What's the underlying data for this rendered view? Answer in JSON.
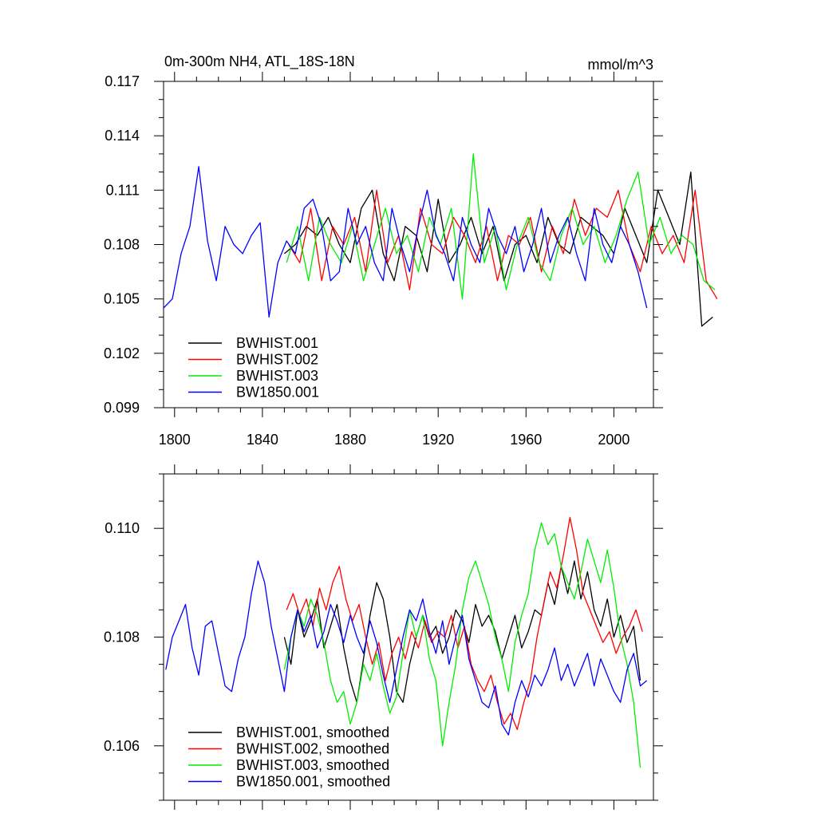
{
  "chart_data": [
    {
      "type": "line",
      "title": "0m-300m NH4, ATL_18S-18N",
      "units": "mmol/m^3",
      "xlabel": "",
      "ylabel": "",
      "xlim": [
        1795,
        2018
      ],
      "ylim": [
        0.099,
        0.117
      ],
      "x_ticks": [
        1800,
        1840,
        1880,
        1920,
        1960,
        2000
      ],
      "y_ticks": [
        0.099,
        0.102,
        0.105,
        0.108,
        0.111,
        0.114,
        0.117
      ],
      "y_tick_labels": [
        "0.099",
        "0.102",
        "0.105",
        "0.108",
        "0.111",
        "0.114",
        "0.117"
      ],
      "legend_position": "bottom-left",
      "series": [
        {
          "name": "BWHIST.001",
          "color": "#000000",
          "x_start": 1850,
          "x_step": 5,
          "values": [
            0.1075,
            0.108,
            0.109,
            0.1085,
            0.1095,
            0.108,
            0.107,
            0.11,
            0.111,
            0.1075,
            0.106,
            0.109,
            0.1085,
            0.1065,
            0.1105,
            0.107,
            0.108,
            0.1095,
            0.1075,
            0.109,
            0.106,
            0.108,
            0.1085,
            0.107,
            0.1095,
            0.108,
            0.1075,
            0.1095,
            0.109,
            0.1085,
            0.1075,
            0.11,
            0.1085,
            0.107,
            0.111,
            0.1095,
            0.108,
            0.112,
            0.1035,
            0.104
          ]
        },
        {
          "name": "BWHIST.002",
          "color": "#ff0000",
          "x_start": 1852,
          "x_step": 5,
          "values": [
            0.108,
            0.107,
            0.11,
            0.106,
            0.109,
            0.108,
            0.1095,
            0.1065,
            0.111,
            0.107,
            0.1085,
            0.1055,
            0.11,
            0.108,
            0.1075,
            0.1095,
            0.1085,
            0.107,
            0.109,
            0.106,
            0.1085,
            0.108,
            0.1095,
            0.1065,
            0.109,
            0.1075,
            0.1105,
            0.1085,
            0.11,
            0.1095,
            0.111,
            0.108,
            0.1065,
            0.109,
            0.1075,
            0.1085,
            0.107,
            0.111,
            0.106,
            0.105
          ]
        },
        {
          "name": "BWHIST.003",
          "color": "#00ee00",
          "x_start": 1851,
          "x_step": 5,
          "values": [
            0.107,
            0.109,
            0.106,
            0.1095,
            0.108,
            0.107,
            0.109,
            0.106,
            0.108,
            0.11,
            0.1075,
            0.1085,
            0.1065,
            0.1095,
            0.108,
            0.11,
            0.105,
            0.113,
            0.107,
            0.109,
            0.1055,
            0.108,
            0.1095,
            0.107,
            0.106,
            0.1085,
            0.11,
            0.108,
            0.109,
            0.107,
            0.1085,
            0.1105,
            0.112,
            0.108,
            0.1095,
            0.1075,
            0.1085,
            0.108,
            0.106,
            0.1055
          ]
        },
        {
          "name": "BW1850.001",
          "color": "#0000ff",
          "x_start": 1795,
          "x_step": 4,
          "values": [
            0.1045,
            0.105,
            0.1075,
            0.109,
            0.1123,
            0.1082,
            0.106,
            0.109,
            0.108,
            0.1075,
            0.1085,
            0.1092,
            0.104,
            0.107,
            0.1082,
            0.1075,
            0.11,
            0.1105,
            0.109,
            0.106,
            0.1065,
            0.11,
            0.108,
            0.109,
            0.107,
            0.106,
            0.11,
            0.108,
            0.1065,
            0.109,
            0.111,
            0.1085,
            0.1075,
            0.106,
            0.1095,
            0.108,
            0.107,
            0.11,
            0.1085,
            0.1075,
            0.109,
            0.1065,
            0.108,
            0.11,
            0.107,
            0.1085,
            0.1095,
            0.1075,
            0.106,
            0.11,
            0.108,
            0.107,
            0.109,
            0.108,
            0.1065,
            0.1045
          ]
        }
      ]
    },
    {
      "type": "line",
      "title": "",
      "xlabel": "",
      "ylabel": "",
      "xlim": [
        1795,
        2018
      ],
      "ylim": [
        0.105,
        0.111
      ],
      "x_ticks": [
        1800,
        1840,
        1880,
        1920,
        1960,
        2000
      ],
      "y_ticks": [
        0.106,
        0.108,
        0.11
      ],
      "y_tick_labels": [
        "0.106",
        "0.108",
        "0.110"
      ],
      "legend_position": "bottom-left",
      "series": [
        {
          "name": "BWHIST.001, smoothed",
          "color": "#000000",
          "x": [
            1850,
            1853,
            1856,
            1859,
            1862,
            1865,
            1868,
            1871,
            1874,
            1877,
            1880,
            1883,
            1886,
            1889,
            1892,
            1895,
            1898,
            1901,
            1904,
            1907,
            1910,
            1913,
            1916,
            1919,
            1922,
            1925,
            1928,
            1931,
            1934,
            1937,
            1940,
            1943,
            1946,
            1949,
            1952,
            1955,
            1958,
            1961,
            1964,
            1967,
            1970,
            1973,
            1976,
            1979,
            1982,
            1985,
            1988,
            1991,
            1994,
            1997,
            2000,
            2003,
            2006,
            2009,
            2012
          ],
          "values": [
            0.108,
            0.1075,
            0.1085,
            0.108,
            0.1083,
            0.1087,
            0.1078,
            0.1082,
            0.1086,
            0.1078,
            0.1072,
            0.1068,
            0.1076,
            0.1084,
            0.109,
            0.1087,
            0.108,
            0.107,
            0.1068,
            0.1075,
            0.108,
            0.1084,
            0.108,
            0.1082,
            0.1077,
            0.108,
            0.1085,
            0.1083,
            0.1079,
            0.1086,
            0.1082,
            0.1084,
            0.1081,
            0.1076,
            0.108,
            0.1084,
            0.1078,
            0.1081,
            0.1085,
            0.1084,
            0.109,
            0.1086,
            0.1093,
            0.1088,
            0.1094,
            0.1087,
            0.1092,
            0.1085,
            0.1082,
            0.1087,
            0.108,
            0.1084,
            0.1079,
            0.1082,
            0.1072
          ]
        },
        {
          "name": "BWHIST.002, smoothed",
          "color": "#ff0000",
          "x": [
            1851,
            1854,
            1857,
            1860,
            1863,
            1866,
            1869,
            1872,
            1875,
            1878,
            1881,
            1884,
            1887,
            1890,
            1893,
            1896,
            1899,
            1902,
            1905,
            1908,
            1911,
            1914,
            1917,
            1920,
            1923,
            1926,
            1929,
            1932,
            1935,
            1938,
            1941,
            1944,
            1947,
            1950,
            1953,
            1956,
            1959,
            1962,
            1965,
            1968,
            1971,
            1974,
            1977,
            1980,
            1983,
            1986,
            1989,
            1992,
            1995,
            1998,
            2001,
            2004,
            2007,
            2010,
            2013
          ],
          "values": [
            0.1085,
            0.1088,
            0.1084,
            0.1087,
            0.1082,
            0.1089,
            0.1085,
            0.109,
            0.1093,
            0.1087,
            0.1083,
            0.1086,
            0.108,
            0.1075,
            0.1079,
            0.1072,
            0.1077,
            0.108,
            0.1076,
            0.1081,
            0.1078,
            0.1083,
            0.1079,
            0.1081,
            0.108,
            0.1084,
            0.1078,
            0.1082,
            0.1075,
            0.1072,
            0.107,
            0.1073,
            0.1068,
            0.1064,
            0.1066,
            0.1063,
            0.1068,
            0.1072,
            0.108,
            0.1086,
            0.1092,
            0.1089,
            0.1095,
            0.1102,
            0.1096,
            0.1088,
            0.1085,
            0.1082,
            0.1079,
            0.1081,
            0.1077,
            0.108,
            0.1082,
            0.1085,
            0.1081
          ]
        },
        {
          "name": "BWHIST.003, smoothed",
          "color": "#00ee00",
          "x": [
            1850,
            1853,
            1856,
            1859,
            1862,
            1865,
            1868,
            1871,
            1874,
            1877,
            1880,
            1883,
            1886,
            1889,
            1892,
            1895,
            1898,
            1901,
            1904,
            1907,
            1910,
            1913,
            1916,
            1919,
            1922,
            1925,
            1928,
            1931,
            1934,
            1937,
            1940,
            1943,
            1946,
            1949,
            1952,
            1955,
            1958,
            1961,
            1964,
            1967,
            1970,
            1973,
            1976,
            1979,
            1982,
            1985,
            1988,
            1991,
            1994,
            1997,
            2000,
            2003,
            2006,
            2009,
            2012
          ],
          "values": [
            0.1074,
            0.108,
            0.1085,
            0.1082,
            0.1087,
            0.1084,
            0.1079,
            0.1072,
            0.1068,
            0.107,
            0.1064,
            0.1068,
            0.1075,
            0.1072,
            0.1077,
            0.1071,
            0.1066,
            0.1069,
            0.1077,
            0.1085,
            0.108,
            0.1084,
            0.1076,
            0.1072,
            0.106,
            0.1068,
            0.1075,
            0.1085,
            0.1091,
            0.1094,
            0.109,
            0.1086,
            0.108,
            0.1076,
            0.107,
            0.1079,
            0.1084,
            0.1088,
            0.1096,
            0.1101,
            0.1097,
            0.1099,
            0.1093,
            0.109,
            0.1087,
            0.1092,
            0.1098,
            0.1094,
            0.109,
            0.1096,
            0.1089,
            0.108,
            0.1075,
            0.1068,
            0.1056
          ]
        },
        {
          "name": "BW1850.001, smoothed",
          "color": "#0000ff",
          "x": [
            1796,
            1799,
            1802,
            1805,
            1808,
            1811,
            1814,
            1817,
            1820,
            1823,
            1826,
            1829,
            1832,
            1835,
            1838,
            1841,
            1844,
            1847,
            1850,
            1853,
            1856,
            1859,
            1862,
            1865,
            1868,
            1871,
            1874,
            1877,
            1880,
            1883,
            1886,
            1889,
            1892,
            1895,
            1898,
            1901,
            1904,
            1907,
            1910,
            1913,
            1916,
            1919,
            1922,
            1925,
            1928,
            1931,
            1934,
            1937,
            1940,
            1943,
            1946,
            1949,
            1952,
            1955,
            1958,
            1961,
            1964,
            1967,
            1970,
            1973,
            1976,
            1979,
            1982,
            1985,
            1988,
            1991,
            1994,
            1997,
            2000,
            2003,
            2006,
            2009,
            2012,
            2015
          ],
          "values": [
            0.1074,
            0.108,
            0.1083,
            0.1086,
            0.1078,
            0.1073,
            0.1082,
            0.1083,
            0.1077,
            0.1071,
            0.107,
            0.1076,
            0.108,
            0.1088,
            0.1094,
            0.109,
            0.1082,
            0.1076,
            0.107,
            0.108,
            0.1085,
            0.1081,
            0.1084,
            0.1078,
            0.1081,
            0.1086,
            0.1083,
            0.1079,
            0.1084,
            0.108,
            0.1077,
            0.1083,
            0.1079,
            0.1073,
            0.1068,
            0.1074,
            0.108,
            0.1085,
            0.1083,
            0.1087,
            0.1081,
            0.1077,
            0.1083,
            0.1075,
            0.108,
            0.1084,
            0.1076,
            0.1072,
            0.1068,
            0.1067,
            0.1071,
            0.1064,
            0.1062,
            0.1068,
            0.1072,
            0.1069,
            0.1073,
            0.1071,
            0.1074,
            0.1078,
            0.1072,
            0.1075,
            0.1071,
            0.1074,
            0.1077,
            0.1071,
            0.1076,
            0.1073,
            0.107,
            0.1068,
            0.1074,
            0.1077,
            0.1071,
            0.1072
          ]
        }
      ]
    }
  ]
}
